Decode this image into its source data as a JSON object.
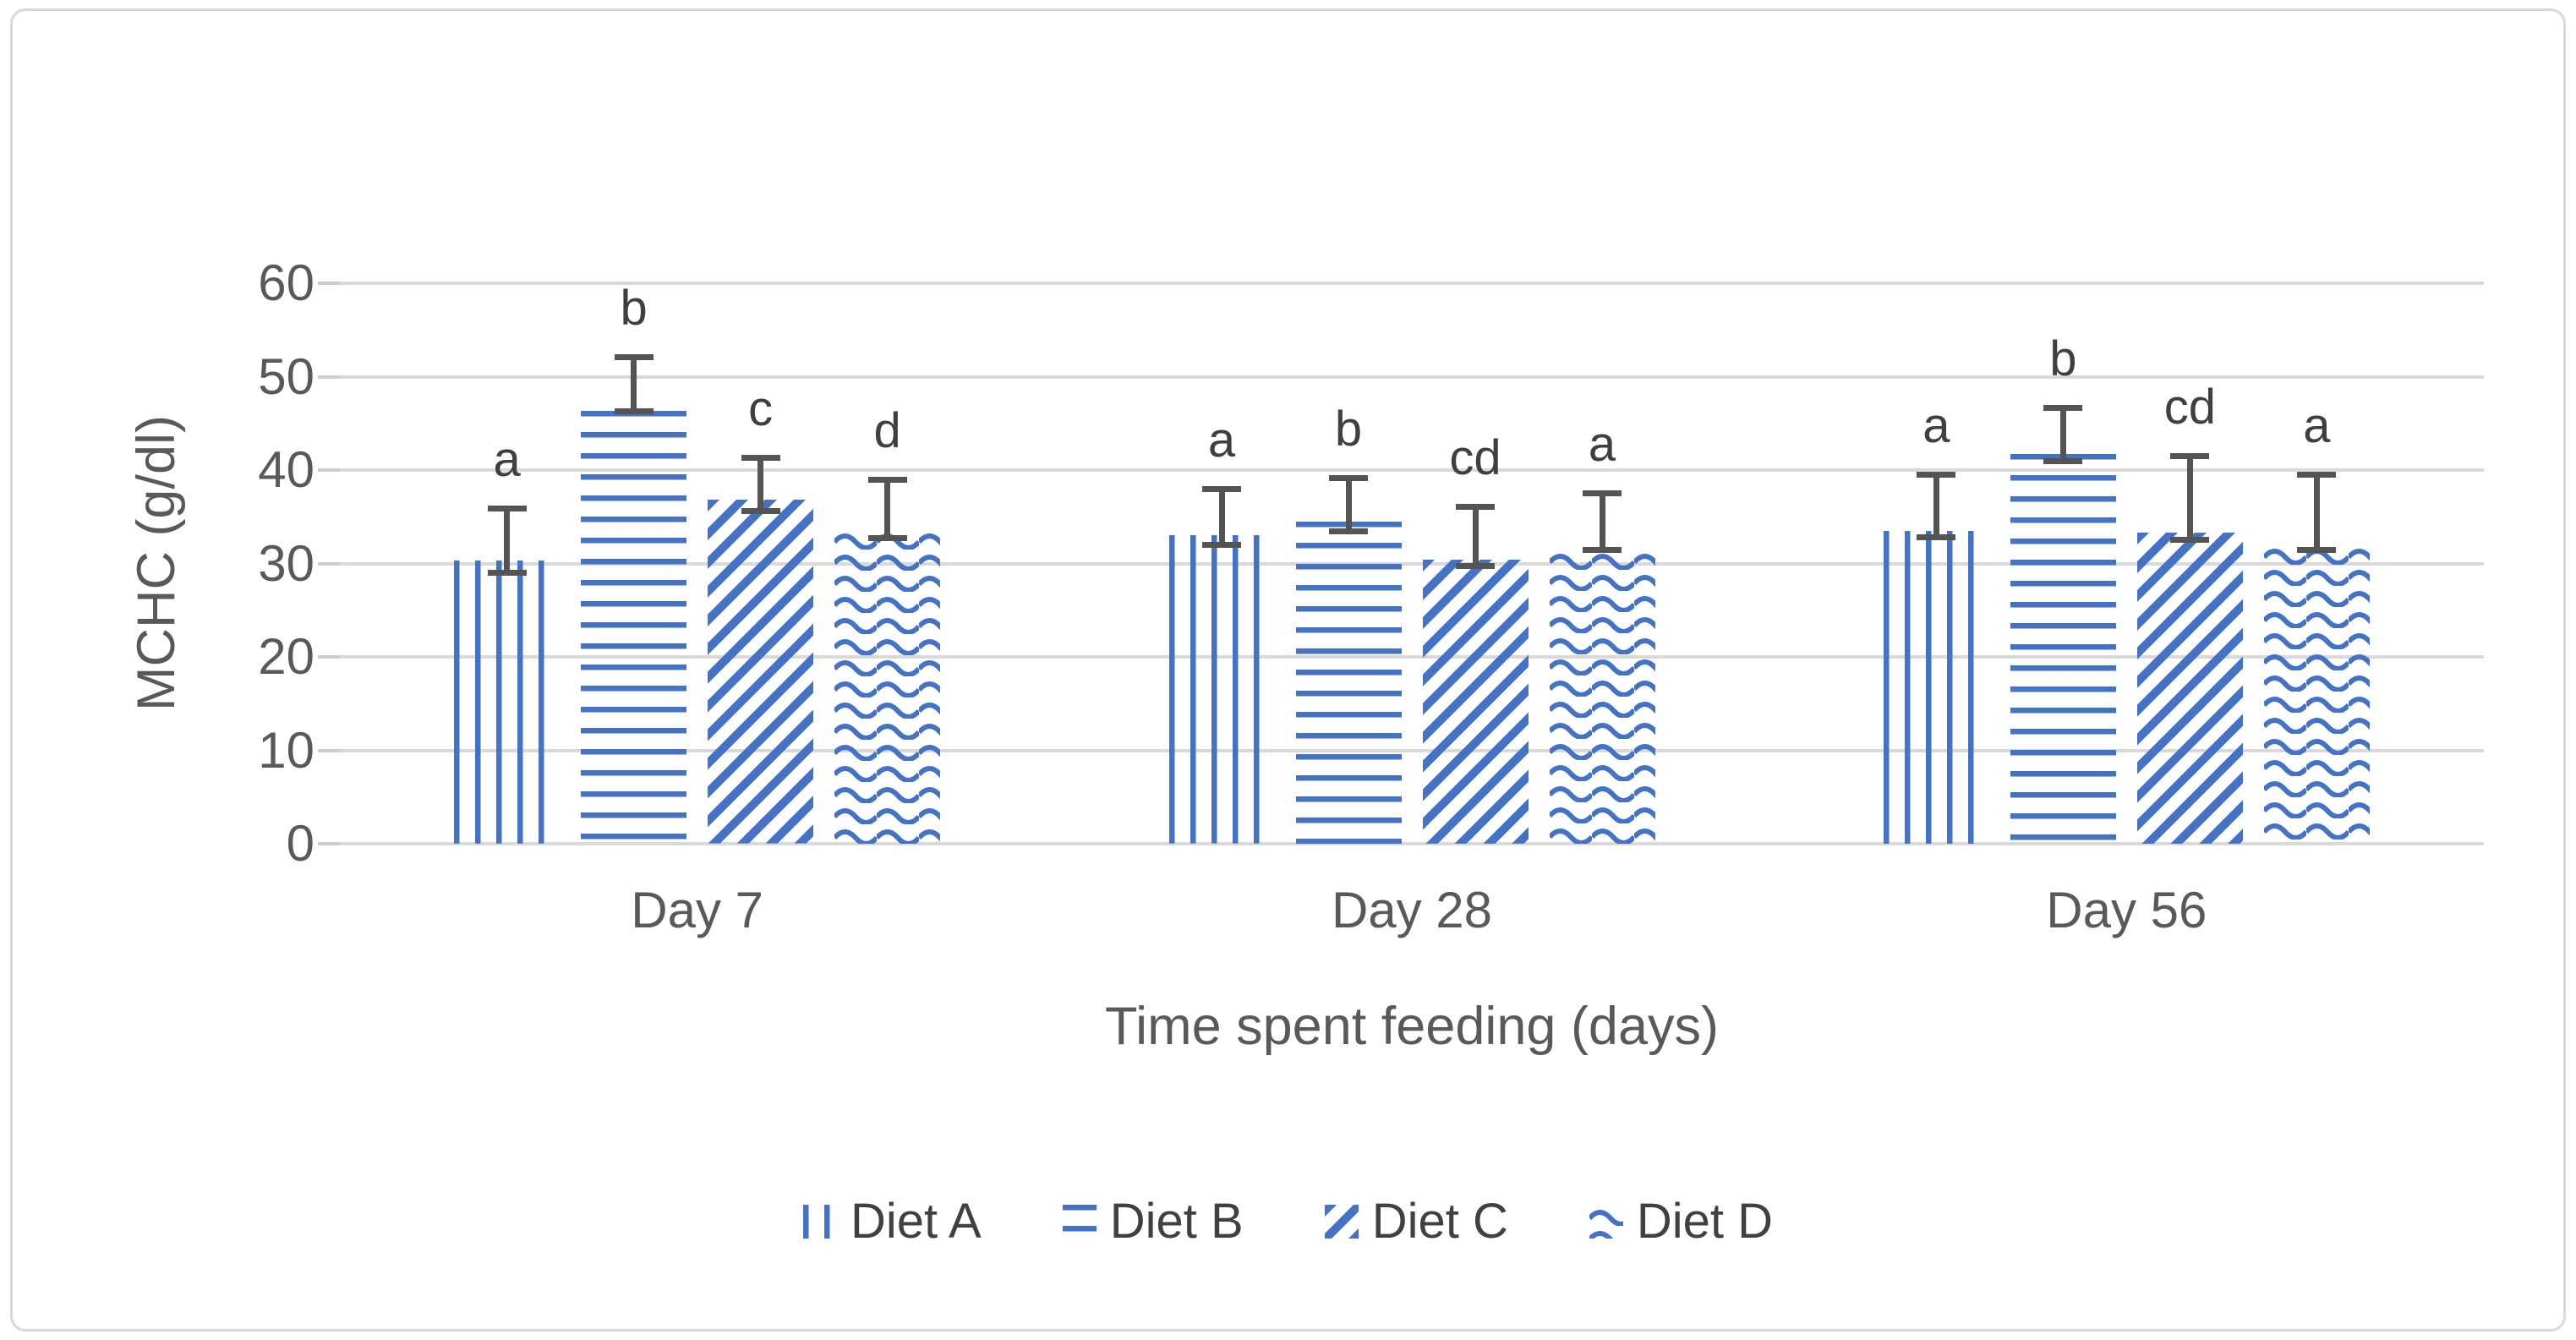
{
  "window": {
    "background_color": "#ffffff",
    "frame_border_color": "#D9D9D9"
  },
  "chart_data": {
    "type": "bar",
    "title": "",
    "xlabel": "Time spent feeding (days)",
    "ylabel": "MCHC (g/dl)",
    "categories": [
      "Day 7",
      "Day 28",
      "Day 56"
    ],
    "ylim": [
      0,
      60
    ],
    "yticks": [
      0,
      10,
      20,
      30,
      40,
      50,
      60
    ],
    "grid": true,
    "legend_position": "bottom-center",
    "bar_color": "#4472C4",
    "error_bar_color": "#545454",
    "gridline_color": "#D9D9D9",
    "series": [
      {
        "name": "Diet A",
        "pattern": "vertical-lines",
        "values": [
          30.3,
          33.0,
          33.5
        ],
        "err_low": [
          28.7,
          31.7,
          32.5
        ],
        "err_high": [
          36.2,
          38.3,
          39.8
        ],
        "sig_letters": [
          "a",
          "a",
          "a"
        ]
      },
      {
        "name": "Diet B",
        "pattern": "horizontal-lines",
        "values": [
          46.3,
          34.5,
          41.7
        ],
        "err_low": [
          46.0,
          33.1,
          40.6
        ],
        "err_high": [
          52.4,
          39.5,
          47.0
        ],
        "sig_letters": [
          "b",
          "b",
          "b"
        ]
      },
      {
        "name": "Diet C",
        "pattern": "diagonal-stripes",
        "values": [
          36.8,
          30.4,
          33.3
        ],
        "err_low": [
          35.3,
          29.4,
          32.2
        ],
        "err_high": [
          41.6,
          36.4,
          41.8
        ],
        "sig_letters": [
          "c",
          "cd",
          "cd"
        ]
      },
      {
        "name": "Diet D",
        "pattern": "waves",
        "values": [
          33.8,
          31.6,
          32.1
        ],
        "err_low": [
          32.4,
          31.1,
          31.1
        ],
        "err_high": [
          39.3,
          37.8,
          39.8
        ],
        "sig_letters": [
          "d",
          "a",
          "a"
        ]
      }
    ]
  }
}
